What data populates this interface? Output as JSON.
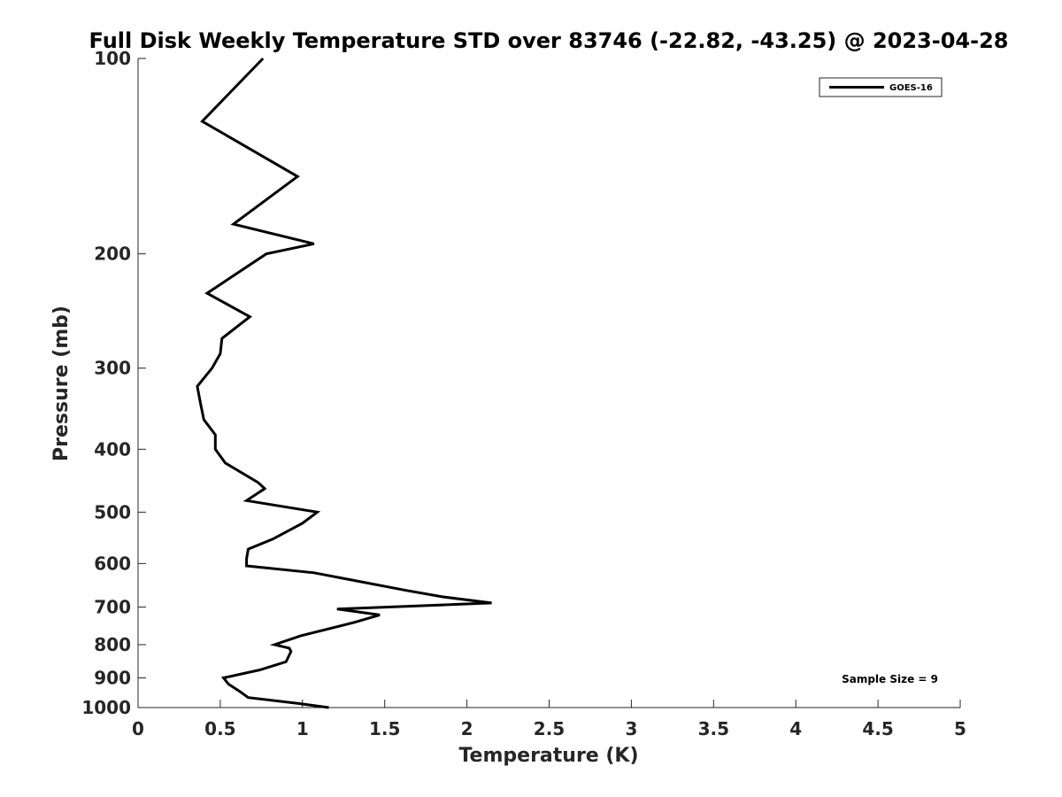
{
  "chart_data": {
    "type": "line",
    "title": "Full Disk Weekly Temperature STD over 83746 (-22.82, -43.25) @ 2023-04-28",
    "xlabel": "Temperature (K)",
    "ylabel": "Pressure (mb)",
    "xlim": [
      0,
      5
    ],
    "ylim": [
      100,
      1000
    ],
    "y_scale": "log",
    "y_reversed": true,
    "x_ticks": [
      "0",
      "0.5",
      "1",
      "1.5",
      "2",
      "2.5",
      "3",
      "3.5",
      "4",
      "4.5",
      "5"
    ],
    "y_ticks": [
      "100",
      "200",
      "300",
      "400",
      "500",
      "600",
      "700",
      "800",
      "900",
      "1000"
    ],
    "grid": false,
    "legend": {
      "position": "top-right",
      "entries": [
        "GOES-16"
      ]
    },
    "annotation": "Sample Size = 9",
    "line_color": "#000000",
    "series": [
      {
        "name": "GOES-16",
        "points": [
          [
            0.76,
            100
          ],
          [
            0.39,
            125
          ],
          [
            0.97,
            152
          ],
          [
            0.58,
            180
          ],
          [
            1.07,
            193
          ],
          [
            0.78,
            200
          ],
          [
            0.42,
            230
          ],
          [
            0.68,
            250
          ],
          [
            0.51,
            270
          ],
          [
            0.5,
            285
          ],
          [
            0.45,
            300
          ],
          [
            0.36,
            320
          ],
          [
            0.38,
            340
          ],
          [
            0.4,
            360
          ],
          [
            0.47,
            380
          ],
          [
            0.47,
            400
          ],
          [
            0.53,
            420
          ],
          [
            0.73,
            450
          ],
          [
            0.77,
            460
          ],
          [
            0.66,
            480
          ],
          [
            1.09,
            500
          ],
          [
            1.0,
            520
          ],
          [
            0.82,
            550
          ],
          [
            0.67,
            570
          ],
          [
            0.66,
            590
          ],
          [
            0.66,
            605
          ],
          [
            1.07,
            620
          ],
          [
            1.63,
            660
          ],
          [
            1.85,
            675
          ],
          [
            2.15,
            690
          ],
          [
            1.21,
            705
          ],
          [
            1.47,
            720
          ],
          [
            1.31,
            740
          ],
          [
            0.99,
            775
          ],
          [
            0.83,
            800
          ],
          [
            0.92,
            810
          ],
          [
            0.93,
            820
          ],
          [
            0.9,
            850
          ],
          [
            0.74,
            875
          ],
          [
            0.52,
            900
          ],
          [
            0.55,
            920
          ],
          [
            0.62,
            945
          ],
          [
            0.67,
            965
          ],
          [
            0.97,
            985
          ],
          [
            1.16,
            1000
          ]
        ]
      }
    ]
  }
}
